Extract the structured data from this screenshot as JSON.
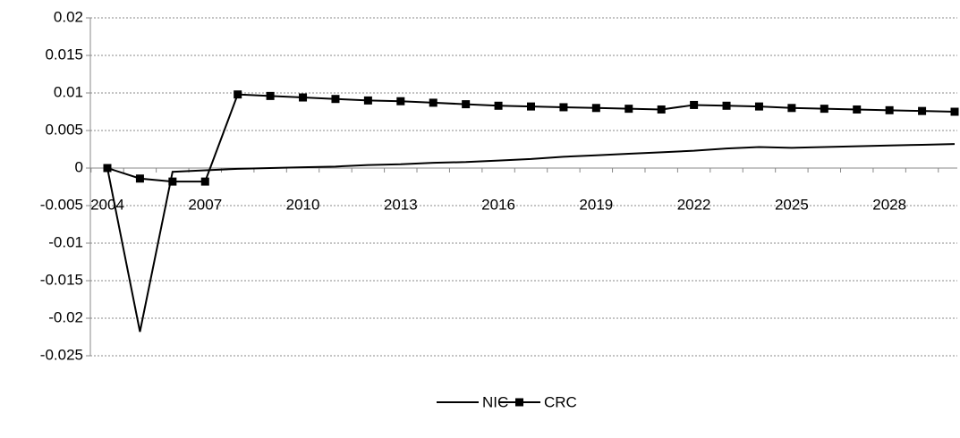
{
  "chart_data": {
    "type": "line",
    "categories": [
      2004,
      null,
      null,
      2007,
      null,
      null,
      2010,
      null,
      null,
      2013,
      null,
      null,
      2016,
      null,
      null,
      2019,
      null,
      null,
      2022,
      null,
      null,
      2025,
      null,
      null,
      2028,
      null,
      null
    ],
    "series": [
      {
        "name": "NIC",
        "color": "#000000",
        "marker": "none",
        "values": [
          0,
          -0.0218,
          -0.0005,
          -0.0003,
          -0.0001,
          0.0,
          0.0001,
          0.0002,
          0.0004,
          0.0005,
          0.0007,
          0.0008,
          0.001,
          0.0012,
          0.0015,
          0.0017,
          0.0019,
          0.0021,
          0.0023,
          0.0026,
          0.0028,
          0.0027,
          0.0028,
          0.0029,
          0.003,
          0.0031,
          0.0032
        ]
      },
      {
        "name": "CRC",
        "color": "#000000",
        "marker": "square",
        "values": [
          0,
          -0.0014,
          -0.0018,
          -0.0018,
          0.0098,
          0.0096,
          0.0094,
          0.0092,
          0.009,
          0.0089,
          0.0087,
          0.0085,
          0.0083,
          0.0082,
          0.0081,
          0.008,
          0.0079,
          0.0078,
          0.0084,
          0.0083,
          0.0082,
          0.008,
          0.0079,
          0.0078,
          0.0077,
          0.0076,
          0.0075
        ]
      }
    ],
    "ylim": [
      -0.025,
      0.02
    ],
    "yticks": [
      -0.025,
      -0.02,
      -0.015,
      -0.01,
      -0.005,
      0,
      0.005,
      0.01,
      0.015,
      0.02
    ],
    "grid": true,
    "legend": "bottom"
  }
}
